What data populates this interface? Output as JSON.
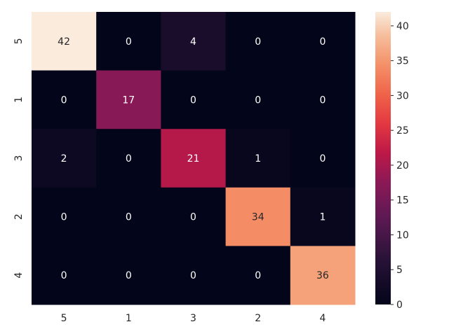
{
  "chart_data": {
    "type": "heatmap",
    "title": "",
    "xlabel": "",
    "ylabel": "",
    "x_categories": [
      "5",
      "1",
      "3",
      "2",
      "4"
    ],
    "y_categories": [
      "5",
      "1",
      "3",
      "2",
      "4"
    ],
    "values": [
      [
        42,
        0,
        4,
        0,
        0
      ],
      [
        0,
        17,
        0,
        0,
        0
      ],
      [
        2,
        0,
        21,
        1,
        0
      ],
      [
        0,
        0,
        0,
        34,
        1
      ],
      [
        0,
        0,
        0,
        0,
        36
      ]
    ],
    "colorbar": {
      "range": [
        0,
        42
      ],
      "ticks": [
        "0",
        "5",
        "10",
        "15",
        "20",
        "25",
        "30",
        "35",
        "40"
      ],
      "colormap": "rocket"
    },
    "annotations": true,
    "grid": false,
    "text_colors": {
      "on_dark": "#ffffff",
      "on_light": "#262626"
    }
  }
}
